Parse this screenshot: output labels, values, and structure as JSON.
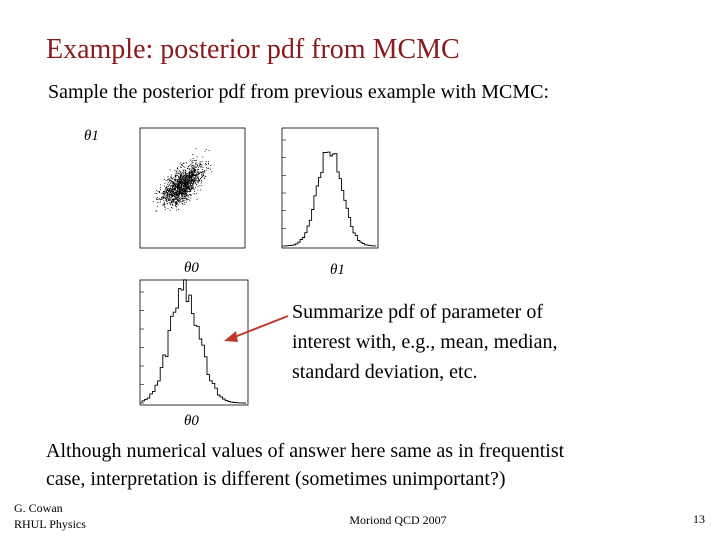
{
  "title": "Example:  posterior pdf from MCMC",
  "subtitle": "Sample the posterior pdf from previous example with MCMC:",
  "plots": {
    "labels": [
      "θ1",
      "θ0",
      "θ1",
      "θ0"
    ]
  },
  "summary": [
    "Summarize pdf of parameter of",
    "interest with, e.g., mean, median,",
    "standard deviation, etc."
  ],
  "conclusion": [
    "Although numerical values of answer here same as in frequentist",
    "case, interpretation is different (sometimes unimportant?)"
  ],
  "footer": {
    "author": [
      "G. Cowan",
      "RHUL Physics"
    ],
    "event": "Moriond QCD 2007",
    "page": "13"
  }
}
